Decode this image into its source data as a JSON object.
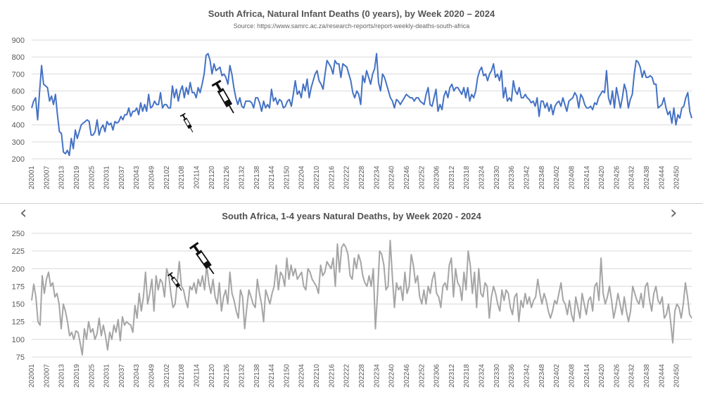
{
  "nav": {
    "prev_glyph": "‹",
    "next_glyph": "›"
  },
  "chart_data": [
    {
      "type": "line",
      "title": "South Africa, Natural Infant Deaths (0 years), by Week 2020 – 2024",
      "subtitle": "Source: https://www.samrc.ac.za/research-reports/report-weekly-deaths-south-africa",
      "ylim": [
        200,
        900
      ],
      "yticks": [
        200,
        300,
        400,
        500,
        600,
        700,
        800,
        900
      ],
      "grid": true,
      "line_color": "#4472C4",
      "x_tick_labels": [
        "202001",
        "202007",
        "202013",
        "202019",
        "202025",
        "202031",
        "202037",
        "202043",
        "202049",
        "202102",
        "202108",
        "202114",
        "202120",
        "202126",
        "202132",
        "202138",
        "202144",
        "202150",
        "202204",
        "202210",
        "202216",
        "202222",
        "202228",
        "202234",
        "202240",
        "202246",
        "202252",
        "202306",
        "202312",
        "202318",
        "202324",
        "202330",
        "202336",
        "202342",
        "202348",
        "202402",
        "202408",
        "202414",
        "202420",
        "202426",
        "202432",
        "202438",
        "202444",
        "202450"
      ],
      "series": [
        {
          "values": [
            500,
            540,
            560,
            430,
            600,
            750,
            640,
            630,
            620,
            540,
            570,
            520,
            580,
            460,
            360,
            350,
            240,
            230,
            250,
            220,
            320,
            260,
            370,
            320,
            360,
            400,
            410,
            420,
            430,
            420,
            340,
            340,
            360,
            430,
            340,
            380,
            400,
            360,
            420,
            400,
            410,
            370,
            420,
            410,
            420,
            450,
            430,
            460,
            460,
            500,
            450,
            480,
            480,
            500,
            460,
            530,
            480,
            520,
            480,
            580,
            500,
            510,
            540,
            520,
            520,
            590,
            500,
            520,
            520,
            500,
            500,
            630,
            560,
            610,
            540,
            600,
            630,
            560,
            620,
            580,
            650,
            590,
            590,
            560,
            620,
            590,
            640,
            700,
            810,
            820,
            780,
            700,
            760,
            720,
            730,
            740,
            690,
            700,
            680,
            640,
            750,
            700,
            620,
            560,
            520,
            560,
            510,
            500,
            540,
            540,
            540,
            530,
            500,
            560,
            560,
            530,
            480,
            540,
            500,
            520,
            500,
            610,
            540,
            560,
            520,
            550,
            540,
            500,
            510,
            540,
            550,
            510,
            580,
            660,
            580,
            600,
            560,
            640,
            600,
            670,
            560,
            620,
            660,
            700,
            720,
            660,
            640,
            610,
            700,
            780,
            760,
            740,
            700,
            780,
            760,
            760,
            680,
            760,
            750,
            740,
            700,
            660,
            590,
            560,
            600,
            580,
            520,
            690,
            650,
            720,
            680,
            640,
            700,
            730,
            820,
            650,
            600,
            700,
            680,
            640,
            600,
            560,
            540,
            500,
            550,
            540,
            520,
            540,
            560,
            580,
            570,
            560,
            560,
            540,
            560,
            560,
            540,
            530,
            520,
            580,
            620,
            520,
            510,
            560,
            610,
            480,
            520,
            490,
            570,
            600,
            560,
            620,
            640,
            600,
            620,
            620,
            600,
            580,
            620,
            560,
            620,
            540,
            580,
            560,
            600,
            680,
            720,
            740,
            690,
            700,
            660,
            700,
            720,
            760,
            680,
            700,
            660,
            720,
            560,
            620,
            540,
            560,
            540,
            660,
            600,
            580,
            620,
            560,
            560,
            580,
            560,
            550,
            530,
            540,
            510,
            560,
            450,
            540,
            540,
            500,
            530,
            480,
            520,
            460,
            510,
            530,
            540,
            510,
            560,
            520,
            480,
            540,
            550,
            560,
            590,
            570,
            500,
            580,
            560,
            520,
            500,
            500,
            510,
            490,
            530,
            520,
            560,
            580,
            600,
            590,
            720,
            560,
            520,
            600,
            500,
            620,
            560,
            500,
            560,
            640,
            600,
            500,
            550,
            580,
            700,
            780,
            770,
            740,
            680,
            720,
            680,
            680,
            690,
            680,
            640,
            640,
            500,
            510,
            520,
            560,
            500,
            460,
            480,
            410,
            500,
            400,
            460,
            440,
            500,
            510,
            560,
            590,
            480,
            440
          ]
        }
      ]
    },
    {
      "type": "line",
      "title": "South Africa, 1-4 years Natural Deaths, by Week 2020 - 2024",
      "ylim": [
        75,
        250
      ],
      "yticks": [
        75,
        100,
        125,
        150,
        175,
        200,
        225,
        250
      ],
      "grid": true,
      "line_color": "#A5A5A5",
      "x_tick_labels": [
        "202001",
        "202007",
        "202013",
        "202019",
        "202025",
        "202031",
        "202037",
        "202043",
        "202049",
        "202102",
        "202108",
        "202114",
        "202120",
        "202126",
        "202132",
        "202138",
        "202144",
        "202150",
        "202204",
        "202210",
        "202216",
        "202222",
        "202228",
        "202234",
        "202240",
        "202246",
        "202252",
        "202306",
        "202312",
        "202318",
        "202324",
        "202330",
        "202336",
        "202342",
        "202348",
        "202402",
        "202408",
        "202414",
        "202420",
        "202426",
        "202432",
        "202438",
        "202444",
        "202450"
      ],
      "series": [
        {
          "values": [
            155,
            178,
            160,
            125,
            120,
            190,
            165,
            185,
            195,
            175,
            180,
            160,
            165,
            150,
            115,
            150,
            140,
            125,
            105,
            110,
            100,
            112,
            110,
            95,
            78,
            115,
            100,
            125,
            110,
            115,
            100,
            108,
            130,
            105,
            120,
            105,
            85,
            110,
            100,
            120,
            110,
            128,
            98,
            132,
            120,
            125,
            122,
            120,
            110,
            148,
            130,
            165,
            140,
            160,
            195,
            150,
            165,
            185,
            140,
            190,
            170,
            185,
            180,
            160,
            200,
            190,
            165,
            145,
            150,
            180,
            210,
            175,
            170,
            155,
            145,
            175,
            170,
            180,
            165,
            185,
            175,
            190,
            170,
            205,
            180,
            165,
            185,
            160,
            150,
            180,
            140,
            160,
            170,
            150,
            195,
            165,
            155,
            140,
            130,
            170,
            160,
            115,
            145,
            170,
            160,
            150,
            145,
            185,
            165,
            150,
            125,
            170,
            160,
            150,
            165,
            175,
            205,
            170,
            195,
            190,
            175,
            215,
            185,
            205,
            190,
            200,
            185,
            190,
            195,
            175,
            170,
            200,
            195,
            185,
            180,
            175,
            165,
            205,
            190,
            195,
            210,
            205,
            200,
            215,
            175,
            235,
            195,
            230,
            235,
            230,
            220,
            190,
            185,
            215,
            200,
            220,
            210,
            190,
            180,
            175,
            190,
            175,
            200,
            115,
            165,
            225,
            220,
            205,
            170,
            175,
            240,
            190,
            145,
            180,
            170,
            175,
            155,
            195,
            165,
            175,
            220,
            205,
            180,
            190,
            160,
            150,
            170,
            150,
            175,
            165,
            185,
            195,
            165,
            160,
            145,
            175,
            180,
            170,
            205,
            215,
            160,
            200,
            180,
            175,
            155,
            195,
            170,
            225,
            205,
            165,
            195,
            145,
            200,
            165,
            160,
            180,
            175,
            130,
            160,
            175,
            165,
            150,
            140,
            170,
            155,
            170,
            165,
            145,
            135,
            160,
            165,
            125,
            155,
            145,
            165,
            150,
            160,
            145,
            155,
            160,
            185,
            165,
            150,
            165,
            155,
            140,
            130,
            140,
            155,
            150,
            165,
            180,
            155,
            150,
            135,
            155,
            135,
            125,
            160,
            145,
            130,
            165,
            150,
            135,
            155,
            160,
            140,
            175,
            180,
            155,
            215,
            165,
            150,
            160,
            175,
            155,
            130,
            145,
            165,
            150,
            135,
            160,
            140,
            125,
            140,
            175,
            165,
            155,
            150,
            165,
            145,
            175,
            180,
            155,
            140,
            165,
            175,
            155,
            150,
            160,
            130,
            135,
            150,
            125,
            95,
            140,
            150,
            145,
            130,
            150,
            180,
            160,
            135,
            130
          ]
        }
      ]
    }
  ]
}
